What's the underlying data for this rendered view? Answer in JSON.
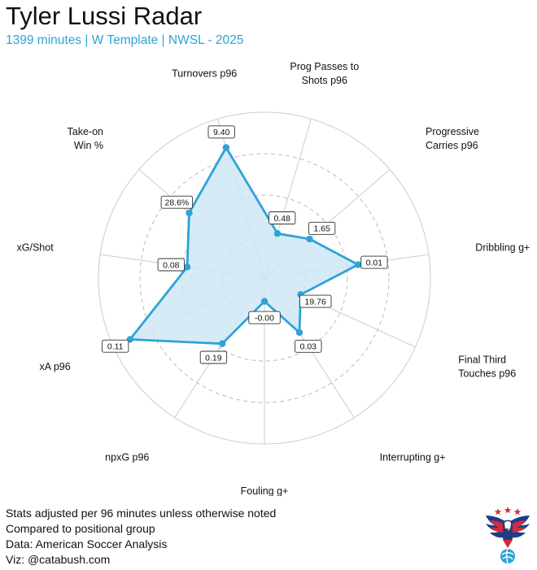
{
  "header": {
    "title": "Tyler Lussi Radar",
    "subtitle": "1399 minutes | W Template | NWSL - 2025"
  },
  "footer": {
    "lines": [
      "Stats adjusted per 96 minutes unless otherwise noted",
      "Compared to positional group",
      "Data: American Soccer Analysis",
      "Viz: @catabush.com"
    ]
  },
  "colors": {
    "accent": "#2ea3d8",
    "fill": "#cfe8f5",
    "grid": "#cccccc",
    "ring_dashed": "#bbbbbb"
  },
  "chart_data": {
    "type": "radar",
    "title": "Tyler Lussi Radar",
    "subtitle": "1399 minutes | W Template | NWSL - 2025",
    "value_scale": "percentile 0-100",
    "grid_rings": [
      25,
      50,
      75,
      100
    ],
    "dashed_rings": [
      25,
      50,
      75
    ],
    "axes": [
      {
        "label": [
          "Prog Passes to",
          "Shots p96"
        ],
        "value_label": "0.48",
        "value": 28
      },
      {
        "label": [
          "Progressive",
          "Carries p96"
        ],
        "value_label": "1.65",
        "value": 36
      },
      {
        "label": [
          "Dribbling g+"
        ],
        "value_label": "0.01",
        "value": 57
      },
      {
        "label": [
          "Final Third",
          "Touches p96"
        ],
        "value_label": "19.76",
        "value": 24
      },
      {
        "label": [
          "Interrupting g+"
        ],
        "value_label": "0.03",
        "value": 39
      },
      {
        "label": [
          "Fouling g+"
        ],
        "value_label": "-0.00",
        "value": 14
      },
      {
        "label": [
          "npxG p96"
        ],
        "value_label": "0.19",
        "value": 47
      },
      {
        "label": [
          "xA p96"
        ],
        "value_label": "0.11",
        "value": 89
      },
      {
        "label": [
          "xG/Shot"
        ],
        "value_label": "0.08",
        "value": 47
      },
      {
        "label": [
          "Take-on",
          "Win %"
        ],
        "value_label": "28.6%",
        "value": 60
      },
      {
        "label": [
          "Turnovers p96"
        ],
        "value_label": "9.40",
        "value": 82
      }
    ]
  }
}
